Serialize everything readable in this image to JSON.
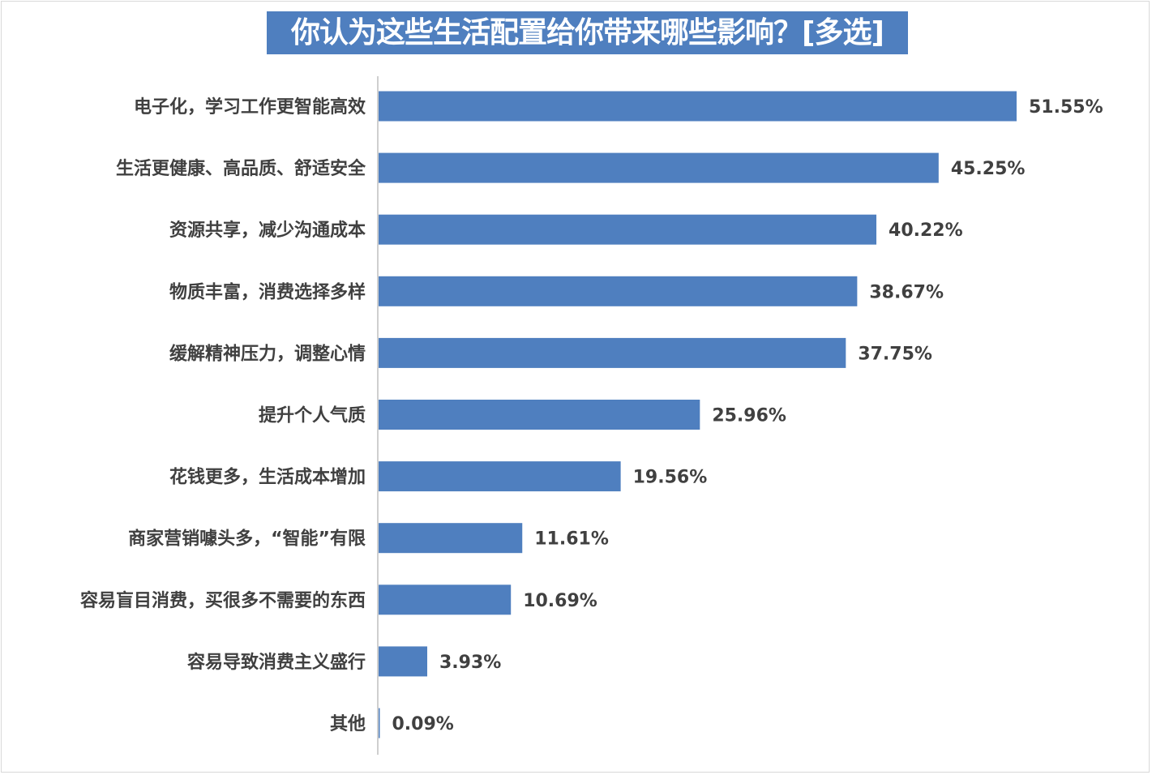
{
  "chart_data": {
    "type": "bar",
    "orientation": "horizontal",
    "title": "你认为这些生活配置给你带来哪些影响？[多选]",
    "categories": [
      "电子化，学习工作更智能高效",
      "生活更健康、高品质、舒适安全",
      "资源共享，减少沟通成本",
      "物质丰富，消费选择多样",
      "缓解精神压力，调整心情",
      "提升个人气质",
      "花钱更多，生活成本增加",
      "商家营销噱头多，“智能”有限",
      "容易盲目消费，买很多不需要的东西",
      "容易导致消费主义盛行",
      "其他"
    ],
    "values": [
      51.55,
      45.25,
      40.22,
      38.67,
      37.75,
      25.96,
      19.56,
      11.61,
      10.69,
      3.93,
      0.09
    ],
    "value_labels": [
      "51.55%",
      "45.25%",
      "40.22%",
      "38.67%",
      "37.75%",
      "25.96%",
      "19.56%",
      "11.61%",
      "10.69%",
      "3.93%",
      "0.09%"
    ],
    "bar_color": "#4f7fbf",
    "title_bg_color": "#4f7fbf",
    "xlim": [
      0,
      60
    ],
    "grid": false,
    "legend": "none"
  }
}
